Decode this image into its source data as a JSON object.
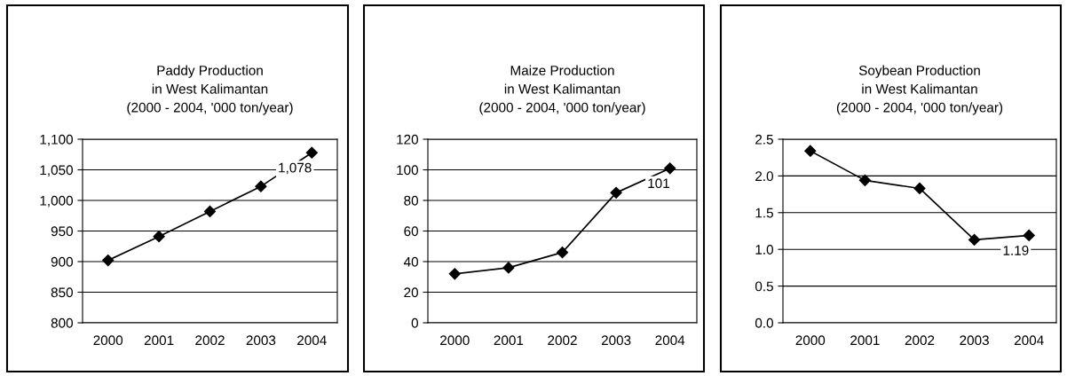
{
  "chart_data": [
    {
      "type": "line",
      "title": "Paddy Production\nin West Kalimantan\n(2000 - 2004, '000 ton/year)",
      "categories": [
        "2000",
        "2001",
        "2002",
        "2003",
        "2004"
      ],
      "series": [
        {
          "color": "#000000",
          "values": [
            902,
            941,
            982,
            1023,
            1078
          ],
          "value_labels": [
            null,
            null,
            null,
            null,
            "1,078"
          ]
        }
      ],
      "ylim": [
        800,
        1100
      ],
      "yticks": [
        {
          "value": 800,
          "label": "800"
        },
        {
          "value": 850,
          "label": "850"
        },
        {
          "value": 900,
          "label": "900"
        },
        {
          "value": 950,
          "label": "950"
        },
        {
          "value": 1000,
          "label": "1,000"
        },
        {
          "value": 1050,
          "label": "1,050"
        },
        {
          "value": 1100,
          "label": "1,100"
        }
      ],
      "grid": "y",
      "marker": "diamond",
      "line_style": "solid"
    },
    {
      "type": "line",
      "title": "Maize Production\nin West Kalimantan\n(2000 - 2004, '000 ton/year)",
      "categories": [
        "2000",
        "2001",
        "2002",
        "2003",
        "2004"
      ],
      "series": [
        {
          "color": "#000000",
          "values": [
            32,
            36,
            46,
            85,
            101
          ],
          "value_labels": [
            null,
            null,
            null,
            null,
            "101"
          ]
        }
      ],
      "ylim": [
        0,
        120
      ],
      "yticks": [
        0,
        20,
        40,
        60,
        80,
        100,
        120
      ],
      "grid": "y",
      "marker": "diamond",
      "line_style": "solid"
    },
    {
      "type": "line",
      "title": "Soybean Production\nin West Kalimantan\n(2000 - 2004, '000 ton/year)",
      "categories": [
        "2000",
        "2001",
        "2002",
        "2003",
        "2004"
      ],
      "series": [
        {
          "color": "#000000",
          "values": [
            2.34,
            1.94,
            1.83,
            1.13,
            1.19
          ],
          "value_labels": [
            null,
            null,
            null,
            null,
            "1.19"
          ]
        }
      ],
      "ylim": [
        0,
        2.5
      ],
      "yticks": [
        {
          "value": 0,
          "label": "0.0"
        },
        {
          "value": 0.5,
          "label": "0.5"
        },
        {
          "value": 1.0,
          "label": "1.0"
        },
        {
          "value": 1.5,
          "label": "1.5"
        },
        {
          "value": 2.0,
          "label": "2.0"
        },
        {
          "value": 2.5,
          "label": "2.5"
        }
      ],
      "grid": "y",
      "marker": "diamond",
      "line_style": "solid"
    }
  ]
}
